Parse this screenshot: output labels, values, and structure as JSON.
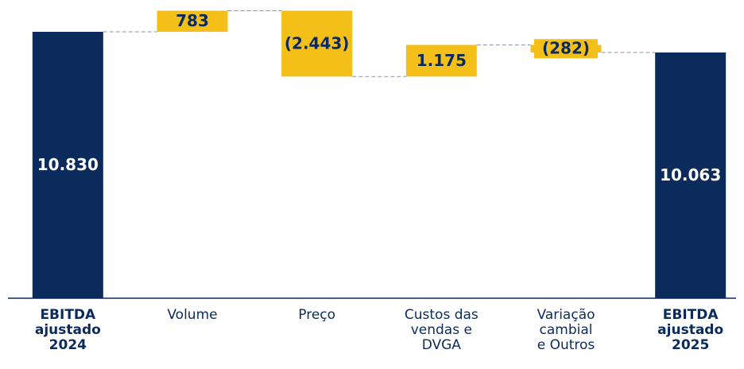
{
  "chart_data": {
    "type": "waterfall",
    "categories": [
      [
        "EBITDA",
        "ajustado",
        "2024"
      ],
      [
        "Volume"
      ],
      [
        "Preço"
      ],
      [
        "Custos das",
        "vendas e",
        "DVGA"
      ],
      [
        "Variação",
        "cambial",
        "e Outros"
      ],
      [
        "EBITDA",
        "ajustado",
        "2025"
      ]
    ],
    "kinds": [
      "total",
      "delta",
      "delta",
      "delta",
      "delta",
      "total"
    ],
    "values": [
      10830,
      783,
      -2443,
      1175,
      -282,
      10063
    ],
    "value_labels": [
      "10.830",
      "783",
      "(2.443)",
      "1.175",
      "(282)",
      "10.063"
    ],
    "total_color": "#0b2b5c",
    "delta_color": "#f5bf19",
    "ylim": [
      950,
      12010
    ]
  }
}
